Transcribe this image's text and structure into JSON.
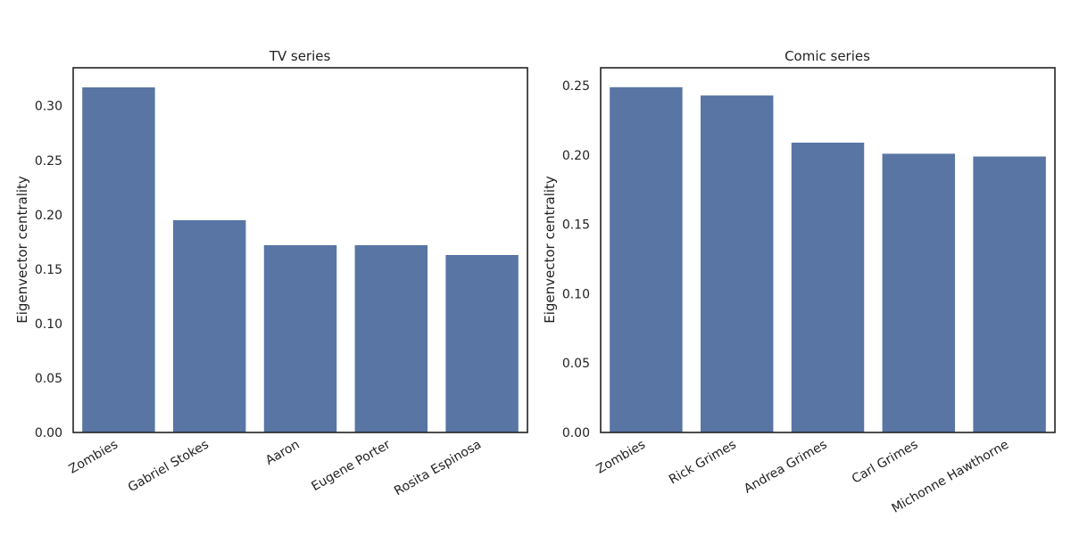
{
  "colors": {
    "bar": "#5875a4",
    "frame": "#222222",
    "background": "#ffffff"
  },
  "chart_data": [
    {
      "type": "bar",
      "title": "TV series",
      "xlabel": "",
      "ylabel": "Eigenvector centrality",
      "categories": [
        "Zombies",
        "Gabriel Stokes",
        "Aaron",
        "Eugene Porter",
        "Rosita Espinosa"
      ],
      "values": [
        0.317,
        0.195,
        0.172,
        0.172,
        0.163
      ],
      "ylim": [
        0,
        0.335
      ],
      "yticks": [
        "0.00",
        "0.05",
        "0.10",
        "0.15",
        "0.20",
        "0.25",
        "0.30"
      ],
      "grid": false,
      "legend": "none"
    },
    {
      "type": "bar",
      "title": "Comic series",
      "xlabel": "",
      "ylabel": "Eigenvector centrality",
      "categories": [
        "Zombies",
        "Rick Grimes",
        "Andrea Grimes",
        "Carl Grimes",
        "Michonne Hawthorne"
      ],
      "values": [
        0.249,
        0.243,
        0.209,
        0.201,
        0.199
      ],
      "ylim": [
        0,
        0.263
      ],
      "yticks": [
        "0.00",
        "0.05",
        "0.10",
        "0.15",
        "0.20",
        "0.25"
      ],
      "grid": false,
      "legend": "none"
    }
  ]
}
